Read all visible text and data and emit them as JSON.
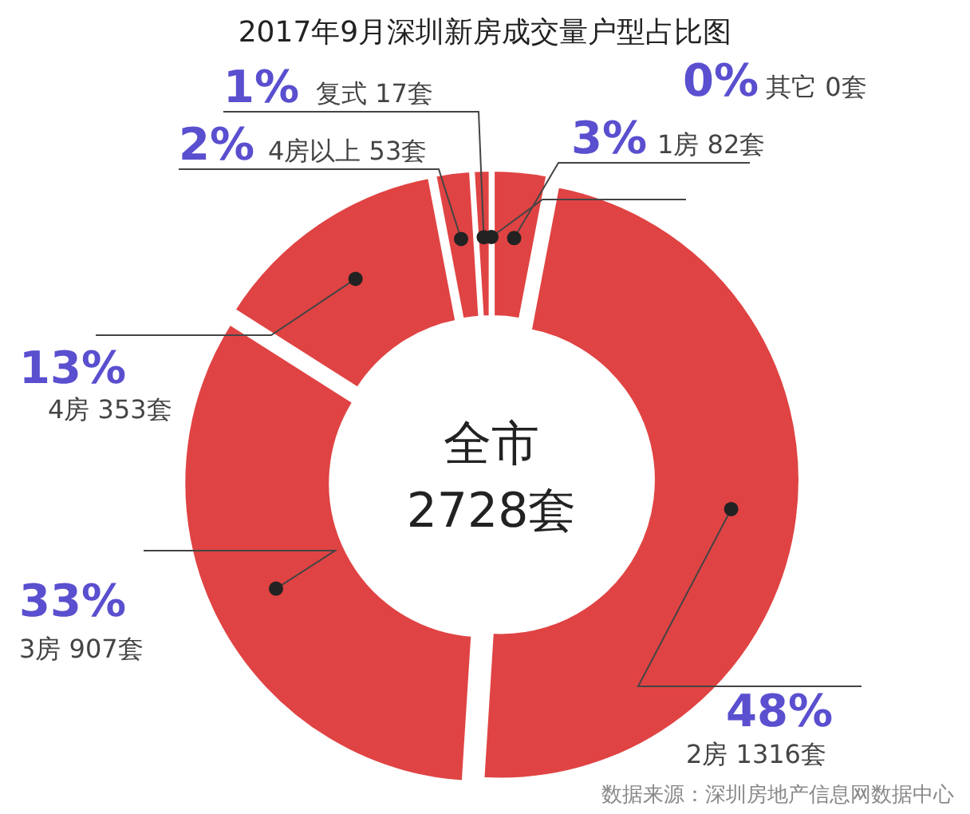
{
  "chart_data": {
    "type": "donut",
    "title": "2017年9月深圳新房成交量户型占比图",
    "categories": [
      "1房 82套",
      "2房 1316套",
      "3房 907套",
      "4房 353套",
      "4房以上 53套",
      "复式 17套",
      "其它 0套"
    ],
    "values": [
      3,
      48,
      33,
      13,
      2,
      1,
      0
    ],
    "value_labels": [
      "3%",
      "48%",
      "33%",
      "13%",
      "2%",
      "1%",
      "0%"
    ],
    "colors": [
      "#e04343",
      "#e04343",
      "#e04343",
      "#e04343",
      "#e04343",
      "#e04343",
      "#e04343"
    ],
    "legend": false,
    "annotations": [
      "全市",
      "2728套",
      "数据来源：深圳房地产信息网数据中心"
    ]
  }
}
